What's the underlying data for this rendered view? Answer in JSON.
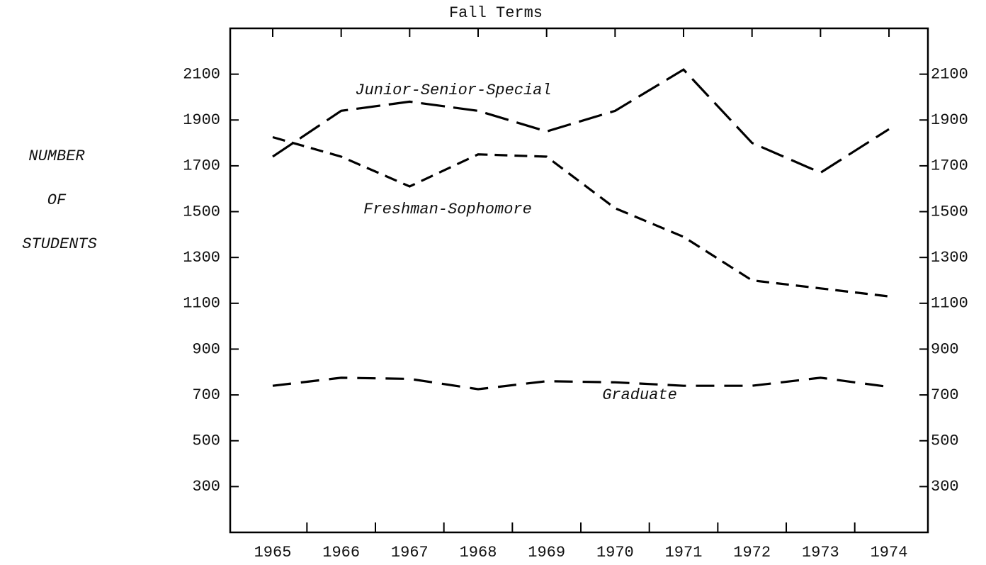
{
  "chart_data": {
    "type": "line",
    "title": "Fall Terms",
    "ylabel_lines": [
      "NUMBER",
      "OF",
      "STUDENTS"
    ],
    "categories": [
      "1965",
      "1966",
      "1967",
      "1968",
      "1969",
      "1970",
      "1971",
      "1972",
      "1973",
      "1974"
    ],
    "series": [
      {
        "name": "Junior-Senior-Special",
        "color": "#000000",
        "values": [
          1740,
          1940,
          1980,
          1940,
          1850,
          1940,
          2120,
          1800,
          1670,
          1860
        ]
      },
      {
        "name": "Freshman-Sophomore",
        "color": "#000000",
        "values": [
          1825,
          1740,
          1610,
          1750,
          1740,
          1515,
          1390,
          1200,
          1165,
          1130
        ]
      },
      {
        "name": "Graduate",
        "color": "#000000",
        "values": [
          740,
          775,
          770,
          725,
          760,
          755,
          740,
          740,
          775,
          735
        ]
      }
    ],
    "ylim": [
      100,
      2300
    ],
    "yticks": [
      300,
      500,
      700,
      900,
      1100,
      1300,
      1500,
      1700,
      1900,
      2100
    ],
    "y2lim": [
      100,
      2300
    ],
    "y2ticks": [
      300,
      500,
      700,
      900,
      1100,
      1300,
      1500,
      1700,
      1900,
      2100
    ],
    "grid": false
  }
}
